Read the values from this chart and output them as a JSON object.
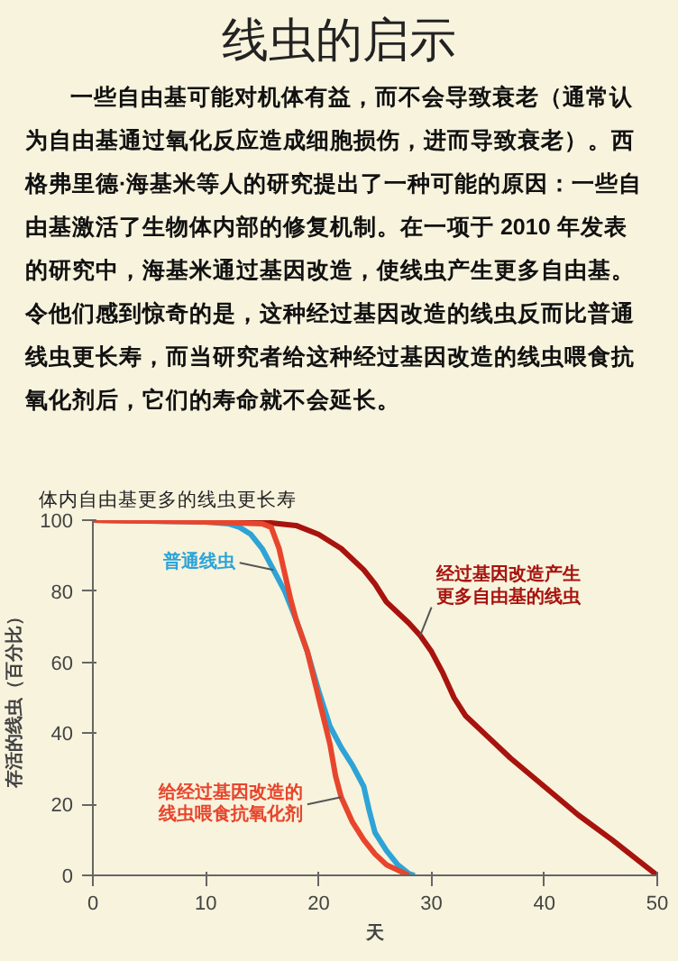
{
  "chart_data": {
    "type": "line",
    "title": "线虫的启示",
    "subtitle": "一些自由基可能对机体有益，而不会导致衰老（通常认为自由基通过氧化反应造成细胞损伤，进而导致衰老）。西格弗里德·海基米等人的研究提出了一种可能的原因：一些自由基激活了生物体内部的修复机制。在一项于 2010 年发表的研究中，海基米通过基因改造，使线虫产生更多自由基。令他们感到惊奇的是，这种经过基因改造的线虫反而比普通线虫更长寿，而当研究者给这种经过基因改造的线虫喂食抗氧化剂后，它们的寿命就不会延长。",
    "annotations": [
      "体内自由基更多的线虫更长寿"
    ],
    "xlabel": "天",
    "ylabel": "存活的线虫（百分比）",
    "xlim": [
      0,
      50
    ],
    "ylim": [
      0,
      100
    ],
    "xticks": [
      0,
      10,
      20,
      30,
      40,
      50
    ],
    "yticks": [
      0,
      20,
      40,
      60,
      80,
      100
    ],
    "grid": false,
    "series": [
      {
        "name": "经过基因改造产生更多自由基的线虫",
        "color": "#a8130e",
        "x": [
          0,
          15,
          18,
          20,
          22,
          24,
          25,
          26,
          28,
          29,
          30,
          31,
          32,
          33,
          35,
          37,
          40,
          43,
          46,
          48,
          50
        ],
        "values": [
          100,
          99.5,
          98.5,
          96,
          92,
          86,
          82,
          77,
          71,
          67.5,
          63,
          57,
          50,
          45,
          39,
          33,
          25,
          17,
          10,
          5,
          0
        ]
      },
      {
        "name": "普通线虫",
        "color": "#2ea3d6",
        "x": [
          0,
          10,
          12,
          13,
          14,
          15,
          16,
          17,
          18,
          19,
          20,
          21,
          22,
          23,
          24,
          24.5,
          25,
          26,
          27,
          28,
          28.5
        ],
        "values": [
          100,
          99.5,
          99,
          98,
          96,
          92,
          86,
          80,
          72,
          63,
          52,
          42,
          36,
          31,
          25,
          18,
          12,
          7,
          3,
          0.5,
          0
        ]
      },
      {
        "name": "给经过基因改造的线虫喂食抗氧化剂",
        "color": "#e8452d",
        "x": [
          0,
          10,
          15,
          15.8,
          16.5,
          17,
          17.5,
          18,
          19,
          20,
          21,
          21.5,
          22,
          23,
          24,
          25,
          26,
          27,
          28
        ],
        "values": [
          100,
          99.5,
          99,
          98,
          92,
          85,
          78,
          72,
          63,
          50,
          37,
          28,
          22,
          15,
          10,
          6,
          3,
          1.5,
          0
        ]
      }
    ]
  }
}
